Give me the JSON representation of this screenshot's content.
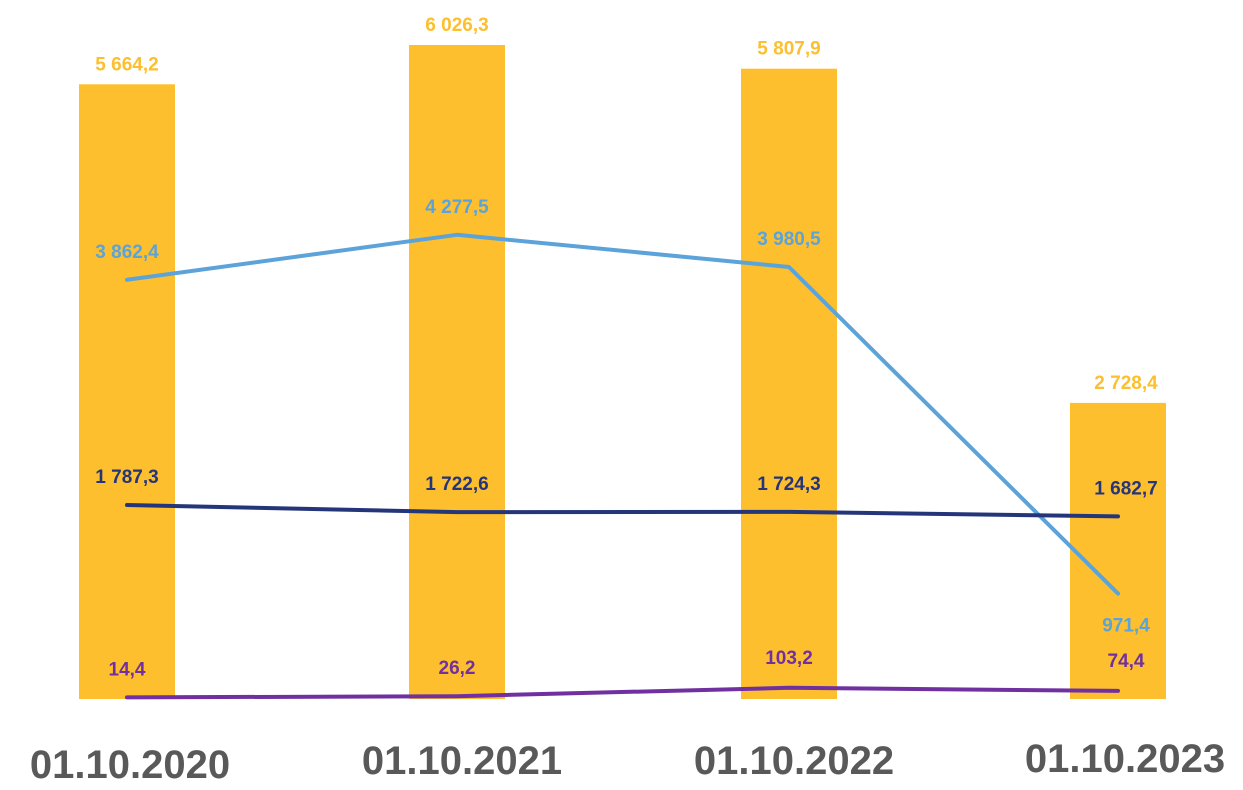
{
  "chart_data": {
    "type": "bar",
    "categories": [
      "01.10.2020",
      "01.10.2021",
      "01.10.2022",
      "01.10.2023"
    ],
    "series": [
      {
        "kind": "bar",
        "color": "#FDBF2D",
        "values": [
          5664.2,
          6026.3,
          5807.9,
          2728.4
        ],
        "labels": [
          "5 664,2",
          "6 026,3",
          "5 807,9",
          "2 728,4"
        ]
      },
      {
        "kind": "line",
        "color": "#5BA3D9",
        "values": [
          3862.4,
          4277.5,
          3980.5,
          971.4
        ],
        "labels": [
          "3 862,4",
          "4 277,5",
          "3 980,5",
          "971,4"
        ]
      },
      {
        "kind": "line",
        "color": "#253579",
        "values": [
          1787.3,
          1722.6,
          1724.3,
          1682.7
        ],
        "labels": [
          "1 787,3",
          "1 722,6",
          "1 724,3",
          "1 682,7"
        ]
      },
      {
        "kind": "line",
        "color": "#7030A0",
        "values": [
          14.4,
          26.2,
          103.2,
          74.4
        ],
        "labels": [
          "14,4",
          "26,2",
          "103,2",
          "74,4"
        ]
      }
    ],
    "ylim": [
      0,
      6026.3
    ],
    "grid": false,
    "legend": "none"
  }
}
